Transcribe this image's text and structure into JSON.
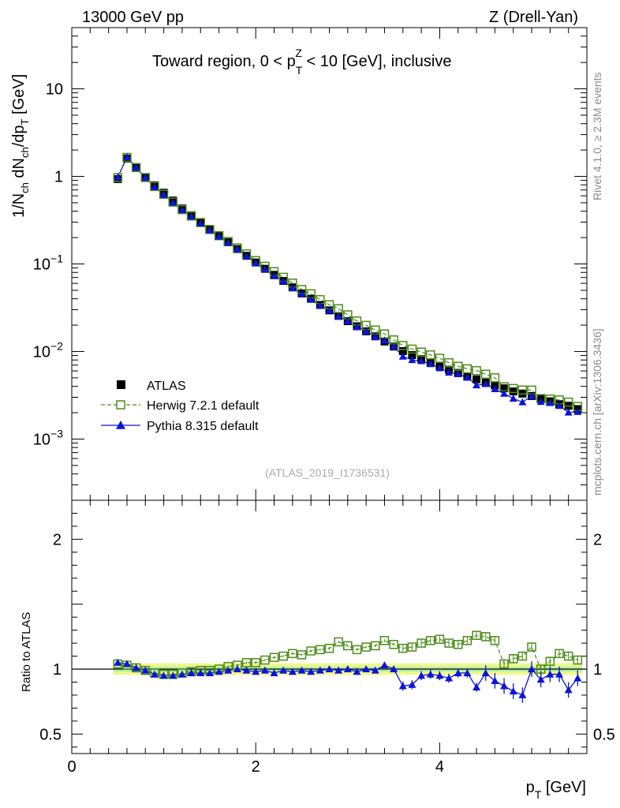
{
  "header": {
    "left": "13000 GeV pp",
    "right": "Z (Drell-Yan)"
  },
  "side": {
    "rivet": "Rivet 4.1.0, ≥ 2.3M events",
    "mcplots": "mcplots.cern.ch [arXiv:1306.3436]"
  },
  "chart_data": {
    "type": "scatter",
    "title_main": "Toward region, 0 < p",
    "title_sup": "Z",
    "title_sub": "T",
    "title_tail": " < 10 [GeV], inclusive",
    "analysis_label": "(ATLAS_2019_I1736531)",
    "ylabel": "1/N_ch dN_ch/dp_T [GeV]",
    "xlabel": "p_T [GeV]",
    "ratio_ylabel": "Ratio to ATLAS",
    "xlim": [
      0,
      5.6
    ],
    "ylim": [
      0.0002,
      50
    ],
    "ratio_ylim": [
      0.35,
      2.3
    ],
    "yscale": "log",
    "x_ticks": [
      0,
      2,
      4
    ],
    "x_tick_labels": [
      "0",
      "2",
      "4"
    ],
    "y_ticks": [
      {
        "value": 10,
        "base": "10",
        "exp": ""
      },
      {
        "value": 1,
        "base": "1",
        "exp": ""
      },
      {
        "value": 0.1,
        "base": "10",
        "exp": "−1"
      },
      {
        "value": 0.01,
        "base": "10",
        "exp": "−2"
      },
      {
        "value": 0.001,
        "base": "10",
        "exp": "−3"
      }
    ],
    "ratio_ticks": [
      {
        "value": 2,
        "label": "2"
      },
      {
        "value": 1,
        "label": "1"
      },
      {
        "value": 0.5,
        "label": "0.5"
      }
    ],
    "x": [
      0.5,
      0.6,
      0.7,
      0.8,
      0.9,
      1.0,
      1.1,
      1.2,
      1.3,
      1.4,
      1.5,
      1.6,
      1.7,
      1.8,
      1.9,
      2.0,
      2.1,
      2.2,
      2.3,
      2.4,
      2.5,
      2.6,
      2.7,
      2.8,
      2.9,
      3.0,
      3.1,
      3.2,
      3.3,
      3.4,
      3.5,
      3.6,
      3.7,
      3.8,
      3.9,
      4.0,
      4.1,
      4.2,
      4.3,
      4.4,
      4.5,
      4.6,
      4.7,
      4.8,
      4.9,
      5.0,
      5.1,
      5.2,
      5.3,
      5.4,
      5.5
    ],
    "series": [
      {
        "name": "ATLAS",
        "color": "#000000",
        "marker": "square-filled",
        "values": [
          0.93,
          1.6,
          1.25,
          0.98,
          0.79,
          0.65,
          0.53,
          0.43,
          0.36,
          0.3,
          0.25,
          0.21,
          0.177,
          0.148,
          0.124,
          0.104,
          0.088,
          0.075,
          0.064,
          0.054,
          0.046,
          0.04,
          0.034,
          0.0295,
          0.0255,
          0.0222,
          0.0194,
          0.017,
          0.0149,
          0.013,
          0.0114,
          0.0101,
          0.0091,
          0.0082,
          0.0075,
          0.0068,
          0.0062,
          0.0057,
          0.0052,
          0.0048,
          0.0044,
          0.0041,
          0.0038,
          0.0035,
          0.0033,
          0.0031,
          0.0029,
          0.0027,
          0.0025,
          0.0024,
          0.0022
        ]
      },
      {
        "name": "Herwig 7.2.1 default",
        "color": "#4c8c1a",
        "marker": "square-open",
        "line": "dashed",
        "ratio": [
          1.04,
          1.03,
          1.01,
          0.99,
          0.97,
          0.96,
          0.96,
          0.97,
          0.98,
          0.99,
          0.99,
          1.0,
          1.02,
          1.03,
          1.05,
          1.05,
          1.07,
          1.09,
          1.1,
          1.12,
          1.11,
          1.14,
          1.15,
          1.16,
          1.21,
          1.18,
          1.15,
          1.17,
          1.18,
          1.22,
          1.19,
          1.16,
          1.17,
          1.2,
          1.22,
          1.23,
          1.2,
          1.19,
          1.22,
          1.26,
          1.25,
          1.22,
          1.04,
          1.08,
          1.1,
          1.17,
          1.0,
          1.06,
          1.12,
          1.1,
          1.07
        ]
      },
      {
        "name": "Pythia 8.315 default",
        "color": "#0b14d8",
        "marker": "triangle-filled",
        "line": "solid",
        "ratio": [
          1.05,
          1.04,
          1.01,
          0.99,
          0.96,
          0.95,
          0.95,
          0.96,
          0.97,
          0.97,
          0.97,
          0.98,
          0.99,
          1.0,
          0.99,
          0.98,
          0.99,
          0.97,
          0.99,
          0.98,
          0.99,
          0.98,
          0.99,
          1.0,
          0.99,
          1.0,
          0.98,
          1.0,
          0.99,
          1.03,
          1.0,
          0.87,
          0.88,
          0.95,
          0.96,
          0.95,
          0.93,
          0.97,
          0.97,
          0.86,
          0.97,
          0.91,
          0.87,
          0.83,
          0.8,
          1.0,
          0.92,
          0.96,
          0.96,
          0.84,
          0.93
        ]
      }
    ],
    "legend": [
      {
        "label": "ATLAS"
      },
      {
        "label": "Herwig 7.2.1 default"
      },
      {
        "label": "Pythia 8.315 default"
      }
    ]
  }
}
